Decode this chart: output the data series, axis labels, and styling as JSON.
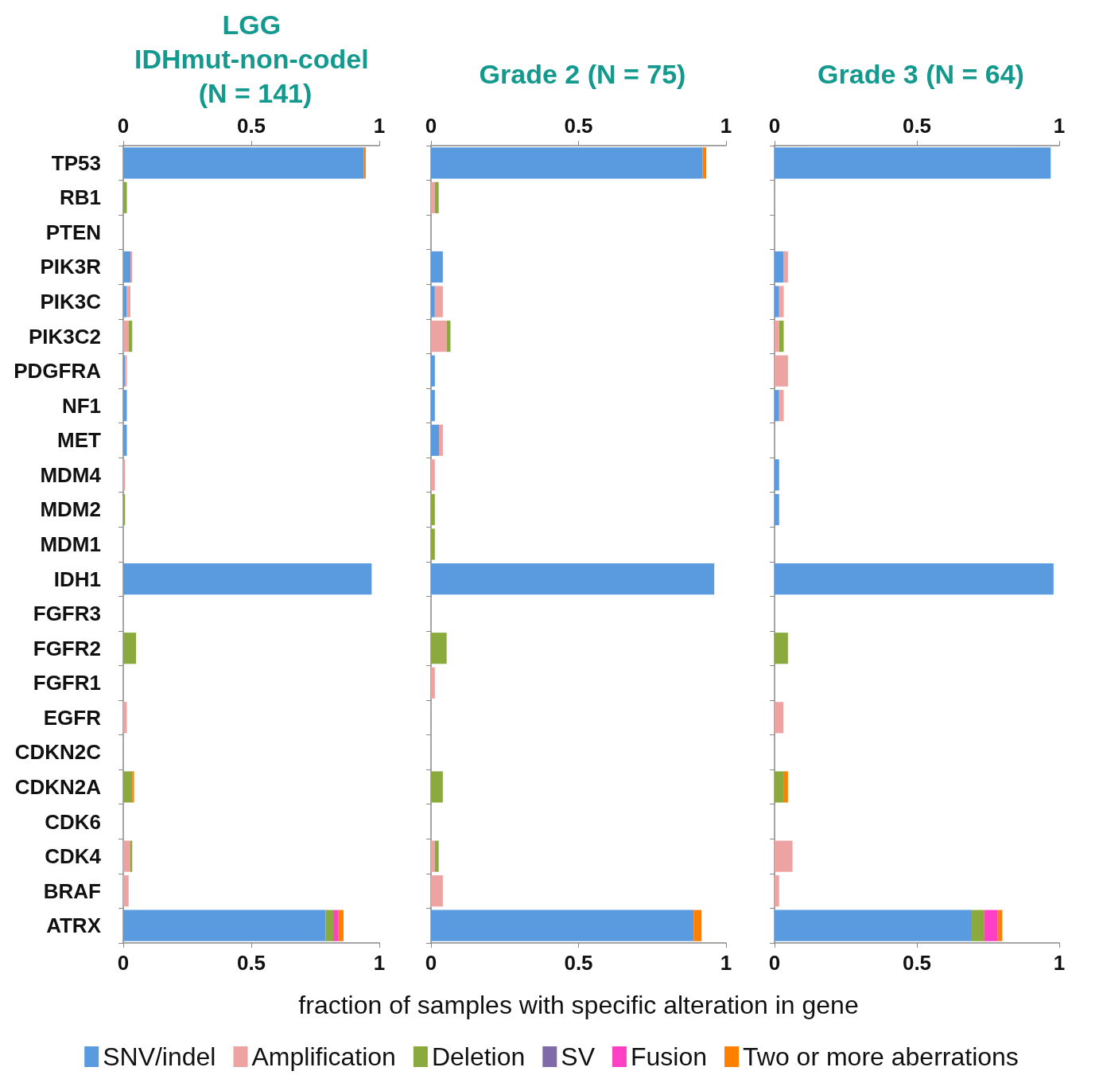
{
  "chart_data": [
    {
      "type": "bar",
      "orientation": "horizontal",
      "stacked": true,
      "title": "LGG IDHmut-non-codel (N = 141)",
      "tick_labels": [
        "x",
        "y"
      ],
      "categories": [
        "TP53",
        "RB1",
        "PTEN",
        "PIK3R",
        "PIK3C",
        "PIK3C2",
        "PDGFRA",
        "NF1",
        "MET",
        "MDM4",
        "MDM2",
        "MDM1",
        "IDH1",
        "FGFR3",
        "FGFR2",
        "FGFR1",
        "EGFR",
        "CDKN2C",
        "CDKN2A",
        "CDK6",
        "CDK4",
        "BRAF",
        "ATRX"
      ],
      "xlim": [
        0,
        1
      ],
      "xticks": [
        0,
        0.5,
        1
      ],
      "x2lim": [
        0,
        1
      ],
      "x2ticks": [
        0,
        0.5,
        1
      ],
      "grid": false,
      "legend": false,
      "series": [
        {
          "color": "#5a9be0",
          "values": [
            0.94,
            0,
            0,
            0.028,
            0.014,
            0,
            0.007,
            0.014,
            0.014,
            0,
            0,
            0,
            0.97,
            0,
            0,
            0,
            0,
            0,
            0,
            0,
            0,
            0,
            0.79
          ]
        },
        {
          "color": "#eca3a1",
          "values": [
            0,
            0,
            0,
            0.007,
            0.014,
            0.021,
            0.007,
            0,
            0,
            0.007,
            0,
            0,
            0,
            0,
            0,
            0,
            0.014,
            0,
            0,
            0,
            0.028,
            0.021,
            0
          ]
        },
        {
          "color": "#8aaa3e",
          "values": [
            0,
            0.014,
            0,
            0,
            0,
            0.014,
            0,
            0,
            0,
            0,
            0.007,
            0,
            0,
            0,
            0.05,
            0,
            0,
            0,
            0.035,
            0,
            0.007,
            0,
            0.03
          ]
        },
        {
          "color": "#7f6ba8",
          "values": [
            0,
            0,
            0,
            0,
            0,
            0,
            0,
            0,
            0,
            0,
            0,
            0,
            0,
            0,
            0,
            0,
            0,
            0,
            0,
            0,
            0,
            0,
            0
          ]
        },
        {
          "color": "#ff40c4",
          "values": [
            0,
            0,
            0,
            0,
            0,
            0,
            0,
            0,
            0,
            0,
            0,
            0,
            0,
            0,
            0,
            0,
            0,
            0,
            0,
            0,
            0,
            0,
            0.02
          ]
        },
        {
          "color": "#ff7f00",
          "values": [
            0.007,
            0,
            0,
            0,
            0,
            0,
            0,
            0,
            0,
            0,
            0,
            0,
            0,
            0,
            0,
            0,
            0,
            0,
            0.007,
            0,
            0,
            0,
            0.02
          ]
        }
      ]
    },
    {
      "type": "bar",
      "orientation": "horizontal",
      "stacked": true,
      "title": "Grade 2 (N = 75)",
      "xlabel": "fraction of samples with specific alteration in gene",
      "tick_labels": "x",
      "categories": [
        null,
        null,
        null,
        null,
        null,
        null,
        null,
        null,
        null,
        null,
        null,
        null,
        null,
        null,
        null,
        null,
        null,
        null,
        null,
        null,
        null,
        null,
        null
      ],
      "xlim": [
        0,
        1
      ],
      "xticks": [
        0,
        0.5,
        1
      ],
      "x2lim": [
        0,
        1
      ],
      "x2ticks": [
        0,
        0.5,
        1
      ],
      "grid": false,
      "legend": "bottom",
      "series": [
        {
          "name": "SNV/indel",
          "color": "#5a9be0",
          "values": [
            0.92,
            0,
            0,
            0.04,
            0.013,
            0,
            0.013,
            0.013,
            0.027,
            0,
            0,
            0,
            0.96,
            0,
            0,
            0,
            0,
            0,
            0,
            0,
            0,
            0,
            0.89
          ]
        },
        {
          "name": "Amplification",
          "color": "#eca3a1",
          "values": [
            0,
            0.013,
            0,
            0,
            0.027,
            0.053,
            0,
            0,
            0.013,
            0.013,
            0,
            0,
            0,
            0,
            0,
            0.013,
            0,
            0,
            0,
            0,
            0.013,
            0.04,
            0
          ]
        },
        {
          "name": "Deletion",
          "color": "#8aaa3e",
          "values": [
            0,
            0.013,
            0,
            0,
            0,
            0.013,
            0,
            0,
            0,
            0,
            0.013,
            0.013,
            0,
            0,
            0.053,
            0,
            0,
            0,
            0.04,
            0,
            0.013,
            0,
            0
          ]
        },
        {
          "name": "SV",
          "color": "#7f6ba8",
          "values": [
            0,
            0,
            0,
            0,
            0,
            0,
            0,
            0,
            0,
            0,
            0,
            0,
            0,
            0,
            0,
            0,
            0,
            0,
            0,
            0,
            0,
            0,
            0
          ]
        },
        {
          "name": "Fusion",
          "color": "#ff40c4",
          "values": [
            0,
            0,
            0,
            0,
            0,
            0,
            0,
            0,
            0,
            0,
            0,
            0,
            0,
            0,
            0,
            0,
            0,
            0,
            0,
            0,
            0,
            0,
            0
          ]
        },
        {
          "name": "Two or more aberrations",
          "color": "#ff7f00",
          "values": [
            0.013,
            0,
            0,
            0,
            0,
            0,
            0,
            0,
            0,
            0,
            0,
            0,
            0,
            0,
            0,
            0,
            0,
            0,
            0,
            0,
            0,
            0,
            0.027
          ]
        }
      ]
    },
    {
      "type": "bar",
      "orientation": "horizontal",
      "stacked": true,
      "title": "Grade 3 (N = 64)",
      "tick_labels": "x",
      "categories": [
        null,
        null,
        null,
        null,
        null,
        null,
        null,
        null,
        null,
        null,
        null,
        null,
        null,
        null,
        null,
        null,
        null,
        null,
        null,
        null,
        null,
        null,
        null
      ],
      "xlim": [
        0,
        1
      ],
      "xticks": [
        0,
        0.5,
        1
      ],
      "x2lim": [
        0,
        1
      ],
      "x2ticks": [
        0,
        0.5,
        1
      ],
      "grid": false,
      "legend": false,
      "series": [
        {
          "color": "#5a9be0",
          "values": [
            0.97,
            0,
            0,
            0.031,
            0.016,
            0,
            0,
            0.016,
            0,
            0.016,
            0.016,
            0,
            0.98,
            0,
            0,
            0,
            0,
            0,
            0,
            0,
            0,
            0,
            0.69
          ]
        },
        {
          "color": "#eca3a1",
          "values": [
            0,
            0,
            0,
            0.016,
            0.016,
            0.016,
            0.047,
            0.016,
            0,
            0,
            0,
            0,
            0,
            0,
            0,
            0,
            0.031,
            0,
            0,
            0,
            0.063,
            0.016,
            0
          ]
        },
        {
          "color": "#8aaa3e",
          "values": [
            0,
            0,
            0,
            0,
            0,
            0.016,
            0,
            0,
            0,
            0,
            0,
            0,
            0,
            0,
            0.047,
            0,
            0,
            0,
            0.031,
            0,
            0,
            0,
            0.047
          ]
        },
        {
          "color": "#7f6ba8",
          "values": [
            0,
            0,
            0,
            0,
            0,
            0,
            0,
            0,
            0,
            0,
            0,
            0,
            0,
            0,
            0,
            0,
            0,
            0,
            0,
            0,
            0,
            0,
            0
          ]
        },
        {
          "color": "#ff40c4",
          "values": [
            0,
            0,
            0,
            0,
            0,
            0,
            0,
            0,
            0,
            0,
            0,
            0,
            0,
            0,
            0,
            0,
            0,
            0,
            0,
            0,
            0,
            0,
            0.047
          ]
        },
        {
          "color": "#ff7f00",
          "values": [
            0,
            0,
            0,
            0,
            0,
            0,
            0,
            0,
            0,
            0,
            0,
            0,
            0,
            0,
            0,
            0,
            0,
            0,
            0.016,
            0,
            0,
            0,
            0.016
          ]
        }
      ]
    }
  ]
}
